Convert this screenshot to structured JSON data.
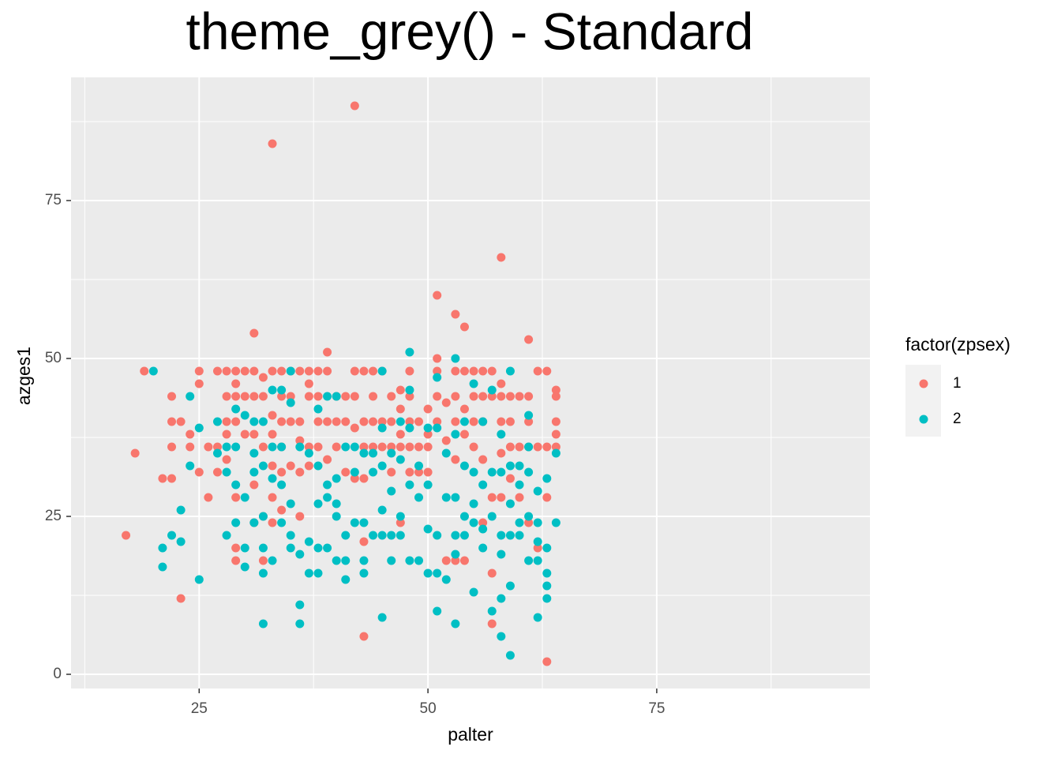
{
  "chart_data": {
    "type": "scatter",
    "title": "theme_grey() - Standard",
    "x_label": "palter",
    "y_label": "azges1",
    "legend_title": "factor(zpsex)",
    "xlim": [
      11,
      98.3
    ],
    "ylim": [
      -2.25,
      94.5
    ],
    "xticks": [
      25,
      50,
      75
    ],
    "yticks": [
      0,
      25,
      50,
      75
    ],
    "grid": true,
    "series": [
      {
        "name": "1",
        "color": "#F8766D",
        "x": [
          17,
          18,
          19,
          21,
          22,
          22,
          22,
          22,
          23,
          23,
          24,
          24,
          25,
          25,
          25,
          26,
          26,
          27,
          27,
          27,
          28,
          28,
          28,
          28,
          28,
          29,
          29,
          29,
          29,
          29,
          29,
          29,
          30,
          30,
          30,
          31,
          31,
          31,
          31,
          31,
          31,
          32,
          32,
          32,
          32,
          32,
          33,
          33,
          33,
          33,
          33,
          33,
          33,
          34,
          34,
          34,
          34,
          34,
          34,
          35,
          35,
          35,
          35,
          36,
          36,
          36,
          36,
          36,
          37,
          37,
          37,
          37,
          37,
          38,
          38,
          38,
          38,
          39,
          39,
          39,
          39,
          40,
          40,
          40,
          41,
          41,
          41,
          42,
          42,
          42,
          42,
          42,
          43,
          43,
          43,
          43,
          43,
          43,
          44,
          44,
          44,
          44,
          45,
          45,
          45,
          46,
          46,
          46,
          46,
          47,
          47,
          47,
          47,
          47,
          48,
          48,
          48,
          48,
          48,
          49,
          49,
          49,
          50,
          50,
          50,
          50,
          51,
          51,
          51,
          51,
          51,
          52,
          52,
          52,
          53,
          53,
          53,
          53,
          53,
          53,
          54,
          54,
          54,
          54,
          54,
          55,
          55,
          55,
          55,
          56,
          56,
          56,
          56,
          56,
          57,
          57,
          57,
          57,
          57,
          58,
          58,
          58,
          58,
          58,
          58,
          59,
          59,
          59,
          59,
          60,
          60,
          60,
          61,
          61,
          61,
          61,
          61,
          62,
          62,
          62,
          63,
          63,
          63,
          63,
          64,
          64,
          64,
          64,
          64
        ],
        "y": [
          22,
          35,
          48,
          31,
          31,
          44,
          40,
          36,
          40,
          12,
          38,
          36,
          48,
          46,
          32,
          36,
          28,
          48,
          36,
          32,
          48,
          44,
          40,
          38,
          34,
          48,
          46,
          44,
          40,
          28,
          20,
          18,
          48,
          44,
          38,
          54,
          48,
          44,
          38,
          30,
          24,
          47,
          44,
          36,
          25,
          18,
          84,
          48,
          41,
          38,
          33,
          28,
          24,
          48,
          44,
          40,
          36,
          32,
          26,
          48,
          44,
          40,
          33,
          48,
          40,
          37,
          32,
          25,
          48,
          46,
          44,
          36,
          33,
          48,
          44,
          40,
          36,
          51,
          48,
          40,
          34,
          44,
          40,
          36,
          44,
          40,
          32,
          90,
          48,
          44,
          39,
          31,
          48,
          40,
          36,
          31,
          21,
          6,
          48,
          44,
          40,
          36,
          48,
          40,
          36,
          44,
          40,
          36,
          32,
          45,
          42,
          38,
          36,
          24,
          48,
          44,
          40,
          36,
          32,
          40,
          36,
          32,
          42,
          38,
          36,
          32,
          60,
          50,
          48,
          44,
          40,
          43,
          37,
          18,
          57,
          48,
          44,
          40,
          34,
          18,
          55,
          48,
          42,
          38,
          18,
          48,
          44,
          40,
          36,
          48,
          44,
          40,
          34,
          24,
          48,
          44,
          28,
          16,
          8,
          66,
          46,
          44,
          40,
          35,
          28,
          44,
          40,
          36,
          31,
          44,
          36,
          28,
          53,
          44,
          40,
          36,
          24,
          48,
          36,
          20,
          48,
          36,
          28,
          2,
          45,
          44,
          40,
          38,
          36
        ]
      },
      {
        "name": "2",
        "color": "#00BFC4",
        "x": [
          20,
          21,
          21,
          22,
          23,
          23,
          24,
          24,
          25,
          25,
          27,
          27,
          28,
          28,
          28,
          29,
          29,
          29,
          29,
          30,
          30,
          30,
          30,
          31,
          31,
          31,
          31,
          32,
          32,
          32,
          32,
          32,
          32,
          33,
          33,
          33,
          33,
          34,
          34,
          34,
          34,
          35,
          35,
          35,
          35,
          35,
          36,
          36,
          36,
          36,
          37,
          37,
          37,
          38,
          38,
          38,
          38,
          38,
          39,
          39,
          39,
          39,
          40,
          40,
          40,
          40,
          40,
          41,
          41,
          41,
          41,
          42,
          42,
          42,
          43,
          43,
          43,
          43,
          44,
          44,
          44,
          45,
          45,
          45,
          45,
          45,
          45,
          46,
          46,
          46,
          46,
          47,
          47,
          47,
          47,
          48,
          48,
          48,
          48,
          48,
          49,
          49,
          49,
          50,
          50,
          50,
          50,
          51,
          51,
          51,
          51,
          51,
          52,
          52,
          52,
          53,
          53,
          53,
          53,
          53,
          53,
          54,
          54,
          54,
          54,
          55,
          55,
          55,
          55,
          55,
          56,
          56,
          56,
          56,
          57,
          57,
          57,
          57,
          58,
          58,
          58,
          58,
          58,
          58,
          59,
          59,
          59,
          59,
          59,
          59,
          60,
          60,
          60,
          60,
          61,
          61,
          61,
          61,
          61,
          62,
          62,
          62,
          62,
          62,
          63,
          63,
          63,
          63,
          63,
          64,
          64
        ],
        "y": [
          48,
          20,
          17,
          22,
          26,
          21,
          44,
          33,
          39,
          15,
          40,
          35,
          36,
          32,
          22,
          42,
          36,
          30,
          24,
          41,
          28,
          20,
          17,
          40,
          35,
          32,
          24,
          40,
          33,
          25,
          20,
          16,
          8,
          45,
          36,
          31,
          18,
          45,
          36,
          30,
          24,
          48,
          43,
          27,
          22,
          20,
          36,
          19,
          11,
          8,
          35,
          21,
          16,
          42,
          33,
          27,
          20,
          16,
          44,
          30,
          28,
          20,
          44,
          31,
          27,
          25,
          18,
          36,
          22,
          18,
          15,
          36,
          32,
          24,
          35,
          24,
          18,
          16,
          35,
          32,
          22,
          48,
          39,
          33,
          26,
          22,
          9,
          35,
          29,
          22,
          18,
          40,
          34,
          25,
          22,
          51,
          45,
          39,
          30,
          18,
          33,
          28,
          18,
          39,
          30,
          23,
          16,
          47,
          39,
          22,
          16,
          10,
          35,
          28,
          15,
          50,
          38,
          28,
          22,
          19,
          8,
          40,
          33,
          25,
          22,
          46,
          32,
          27,
          24,
          13,
          40,
          30,
          23,
          20,
          45,
          32,
          25,
          10,
          38,
          32,
          22,
          19,
          12,
          6,
          48,
          33,
          27,
          22,
          14,
          3,
          33,
          30,
          24,
          22,
          41,
          36,
          32,
          25,
          18,
          29,
          24,
          21,
          18,
          9,
          31,
          20,
          16,
          14,
          12,
          35,
          24
        ]
      }
    ]
  }
}
